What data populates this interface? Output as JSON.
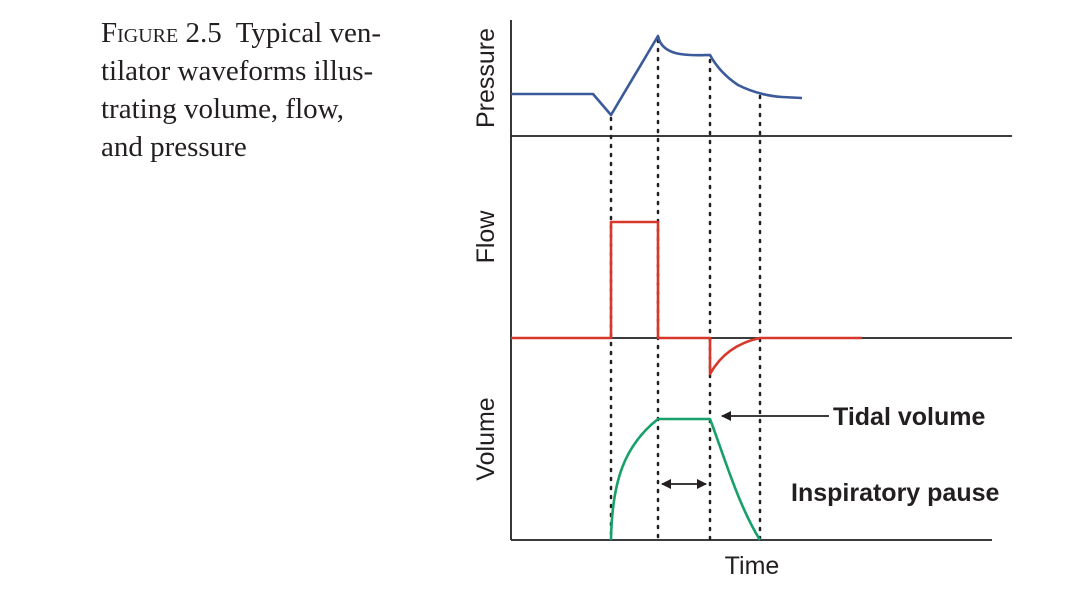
{
  "caption": {
    "figure_label": "Figure 2.5",
    "lines": [
      "Typical ven-",
      "tilator waveforms illus-",
      "trating volume, flow,",
      "and pressure"
    ]
  },
  "panels": {
    "pressure_label": "Pressure",
    "flow_label": "Flow",
    "volume_label": "Volume",
    "time_label": "Time"
  },
  "annotations": {
    "tidal_volume": "Tidal volume",
    "inspiratory_pause": "Inspiratory pause"
  },
  "colors": {
    "pressure": "#3b5a9a",
    "flow": "#d8382c",
    "volume": "#17a06a",
    "axis": "#231f20"
  }
}
